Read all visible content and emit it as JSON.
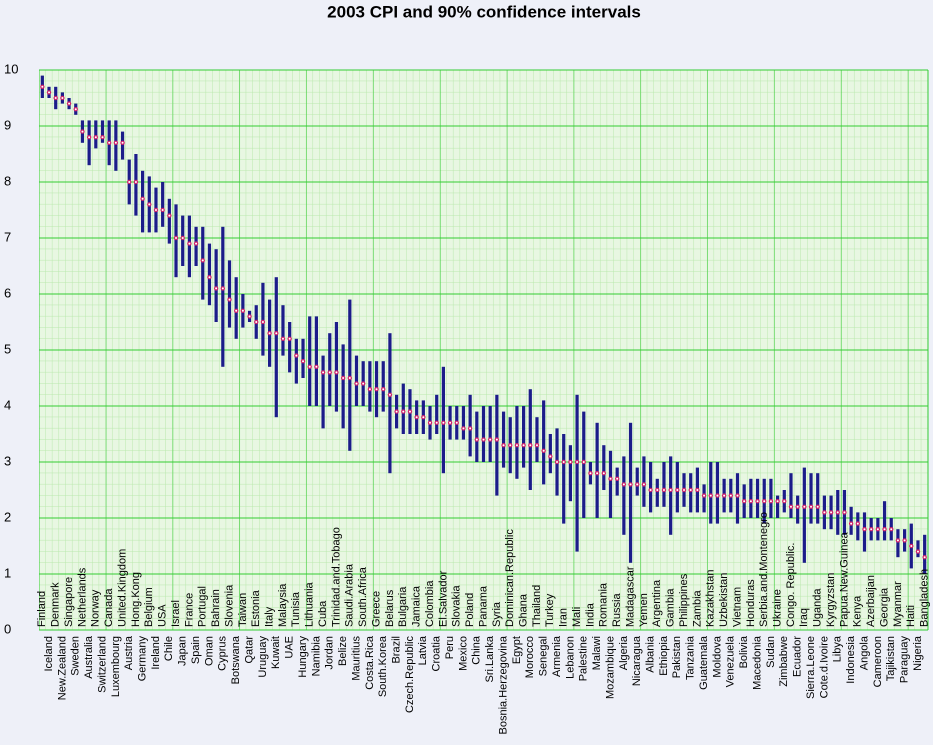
{
  "chart_data": {
    "type": "interval",
    "title": "2003 CPI and 90% confidence intervals",
    "categories": [
      "Finland",
      "Iceland",
      "Denmark",
      "New.Zealand",
      "Singapore",
      "Sweden",
      "Netherlands",
      "Australia",
      "Norway",
      "Switzerland",
      "Canada",
      "Luxembourg",
      "United.Kingdom",
      "Austria",
      "Hong.Kong",
      "Germany",
      "Belgium",
      "Ireland",
      "USA",
      "Chile",
      "Israel",
      "Japan",
      "France",
      "Spain",
      "Portugal",
      "Oman",
      "Bahrain",
      "Cyprus",
      "Slovenia",
      "Botswana",
      "Taiwan",
      "Qatar",
      "Estonia",
      "Uruguay",
      "Italy",
      "Kuwait",
      "Malaysia",
      "UAE",
      "Tunisia",
      "Hungary",
      "Lithuania",
      "Namibia",
      "Cuba",
      "Jordan",
      "Trinidad.and.Tobago",
      "Belize",
      "Saudi.Arabia",
      "Mauritius",
      "South.Africa",
      "Costa.Rica",
      "Greece",
      "South.Korea",
      "Belarus",
      "Brazil",
      "Bulgaria",
      "Czech.Republic",
      "Jamaica",
      "Latvia",
      "Colombia",
      "Croatia",
      "El.Salvador",
      "Peru",
      "Slovakia",
      "Mexico",
      "Poland",
      "China",
      "Panama",
      "Sri.Lanka",
      "Syria",
      "Bosnia.Herzegovina",
      "Dominican.Republic",
      "Egypt",
      "Ghana",
      "Morocco",
      "Thailand",
      "Senegal",
      "Turkey",
      "Armenia",
      "Iran",
      "Lebanon",
      "Mali",
      "Palestine",
      "India",
      "Malawi",
      "Romania",
      "Mozambique",
      "Russia",
      "Algeria",
      "Madagascar",
      "Nicaragua",
      "Yemen",
      "Albania",
      "Argentina",
      "Ethiopia",
      "Gambia",
      "Pakistan",
      "Philippines",
      "Tanzania",
      "Zambia",
      "Guatemala",
      "Kazakhstan",
      "Moldova",
      "Uzbekistan",
      "Venezuela",
      "Vietnam",
      "Bolivia",
      "Honduras",
      "Macedonia",
      "Serbia.and.Montenegro",
      "Sudan",
      "Ukraine",
      "Zimbabwe",
      "Congo. Republic.",
      "Ecuador",
      "Iraq",
      "Sierra.Leone",
      "Uganda",
      "Cote.d.Ivoire",
      "Kyrgyzstan",
      "Libya",
      "Papua.New.Guinea",
      "Indonesia",
      "Kenya",
      "Angola",
      "Azerbaijan",
      "Cameroon",
      "Georgia",
      "Tajikistan",
      "Myanmar",
      "Paraguay",
      "Haiti",
      "Nigeria",
      "Bangladesh"
    ],
    "values": [
      9.7,
      9.6,
      9.5,
      9.5,
      9.4,
      9.3,
      8.9,
      8.8,
      8.8,
      8.8,
      8.7,
      8.7,
      8.7,
      8.0,
      8.0,
      7.7,
      7.6,
      7.5,
      7.5,
      7.4,
      7.0,
      7.0,
      6.9,
      6.9,
      6.6,
      6.3,
      6.1,
      6.1,
      5.9,
      5.7,
      5.7,
      5.6,
      5.5,
      5.5,
      5.3,
      5.3,
      5.2,
      5.2,
      4.9,
      4.8,
      4.7,
      4.7,
      4.6,
      4.6,
      4.6,
      4.5,
      4.5,
      4.4,
      4.4,
      4.3,
      4.3,
      4.3,
      4.2,
      3.9,
      3.9,
      3.9,
      3.8,
      3.8,
      3.7,
      3.7,
      3.7,
      3.7,
      3.7,
      3.6,
      3.6,
      3.4,
      3.4,
      3.4,
      3.4,
      3.3,
      3.3,
      3.3,
      3.3,
      3.3,
      3.3,
      3.2,
      3.1,
      3.0,
      3.0,
      3.0,
      3.0,
      3.0,
      2.8,
      2.8,
      2.8,
      2.7,
      2.7,
      2.6,
      2.6,
      2.6,
      2.6,
      2.5,
      2.5,
      2.5,
      2.5,
      2.5,
      2.5,
      2.5,
      2.5,
      2.4,
      2.4,
      2.4,
      2.4,
      2.4,
      2.4,
      2.3,
      2.3,
      2.3,
      2.3,
      2.3,
      2.3,
      2.3,
      2.2,
      2.2,
      2.2,
      2.2,
      2.2,
      2.1,
      2.1,
      2.1,
      2.1,
      1.9,
      1.9,
      1.8,
      1.8,
      1.8,
      1.8,
      1.8,
      1.6,
      1.6,
      1.5,
      1.4,
      1.3
    ],
    "lower": [
      9.5,
      9.5,
      9.3,
      9.4,
      9.3,
      9.2,
      8.7,
      8.3,
      8.6,
      8.7,
      8.3,
      8.2,
      8.4,
      7.6,
      7.4,
      7.1,
      7.1,
      7.1,
      7.2,
      6.9,
      6.3,
      6.5,
      6.3,
      6.5,
      5.9,
      5.8,
      5.5,
      4.7,
      5.4,
      5.2,
      5.4,
      5.5,
      5.2,
      4.9,
      4.7,
      3.8,
      4.9,
      4.6,
      4.4,
      4.5,
      4.0,
      4.0,
      3.6,
      4.0,
      3.9,
      3.6,
      3.2,
      4.0,
      4.0,
      3.9,
      3.8,
      3.9,
      2.8,
      3.6,
      3.5,
      3.5,
      3.5,
      3.5,
      3.4,
      3.5,
      2.8,
      3.4,
      3.4,
      3.4,
      3.1,
      3.0,
      3.0,
      3.0,
      2.4,
      2.9,
      2.8,
      2.7,
      2.9,
      2.5,
      3.0,
      2.6,
      2.8,
      2.4,
      1.9,
      2.3,
      1.4,
      2.0,
      2.6,
      2.0,
      2.5,
      2.0,
      2.4,
      1.7,
      1.2,
      2.4,
      2.2,
      2.1,
      2.2,
      2.2,
      1.7,
      2.1,
      2.2,
      2.1,
      2.1,
      2.1,
      1.9,
      1.9,
      2.1,
      2.1,
      1.9,
      2.0,
      2.0,
      2.0,
      1.9,
      2.0,
      2.0,
      2.1,
      2.0,
      1.9,
      1.2,
      1.9,
      1.9,
      1.8,
      1.8,
      1.7,
      1.7,
      1.7,
      1.6,
      1.4,
      1.6,
      1.6,
      1.6,
      1.6,
      1.3,
      1.4,
      1.1,
      1.3,
      1.0
    ],
    "upper": [
      9.9,
      9.7,
      9.7,
      9.6,
      9.5,
      9.4,
      9.1,
      9.1,
      9.1,
      9.1,
      9.1,
      9.1,
      8.9,
      8.4,
      8.5,
      8.2,
      8.1,
      7.9,
      8.0,
      7.7,
      7.6,
      7.4,
      7.4,
      7.2,
      7.2,
      6.9,
      6.8,
      7.2,
      6.6,
      6.3,
      6.0,
      5.7,
      5.8,
      6.2,
      5.9,
      6.3,
      5.8,
      5.5,
      5.2,
      5.2,
      5.6,
      5.6,
      4.9,
      5.3,
      5.5,
      5.1,
      5.9,
      4.9,
      4.8,
      4.8,
      4.8,
      4.8,
      5.3,
      4.2,
      4.4,
      4.3,
      4.1,
      4.1,
      4.0,
      4.2,
      4.7,
      4.0,
      4.0,
      4.0,
      4.2,
      3.9,
      4.0,
      4.0,
      4.2,
      3.9,
      3.8,
      4.0,
      4.0,
      4.3,
      3.8,
      4.1,
      3.5,
      3.6,
      3.5,
      3.3,
      4.2,
      3.9,
      3.0,
      3.7,
      3.3,
      3.2,
      2.9,
      3.1,
      3.7,
      2.9,
      3.1,
      3.0,
      2.7,
      3.0,
      3.1,
      3.0,
      2.8,
      2.8,
      2.9,
      2.6,
      3.0,
      3.0,
      2.7,
      2.7,
      2.8,
      2.6,
      2.7,
      2.7,
      2.7,
      2.7,
      2.4,
      2.5,
      2.8,
      2.4,
      2.9,
      2.8,
      2.8,
      2.4,
      2.4,
      2.5,
      2.5,
      2.2,
      2.1,
      2.1,
      2.0,
      2.0,
      2.3,
      2.0,
      1.8,
      1.8,
      1.9,
      1.6,
      1.7
    ],
    "bar_color": "#1c1c8a",
    "point_color": "#d0206a",
    "ylim": [
      0,
      10
    ],
    "yticks": [
      0,
      1,
      2,
      3,
      4,
      5,
      6,
      7,
      8,
      9,
      10
    ],
    "grid": true
  }
}
